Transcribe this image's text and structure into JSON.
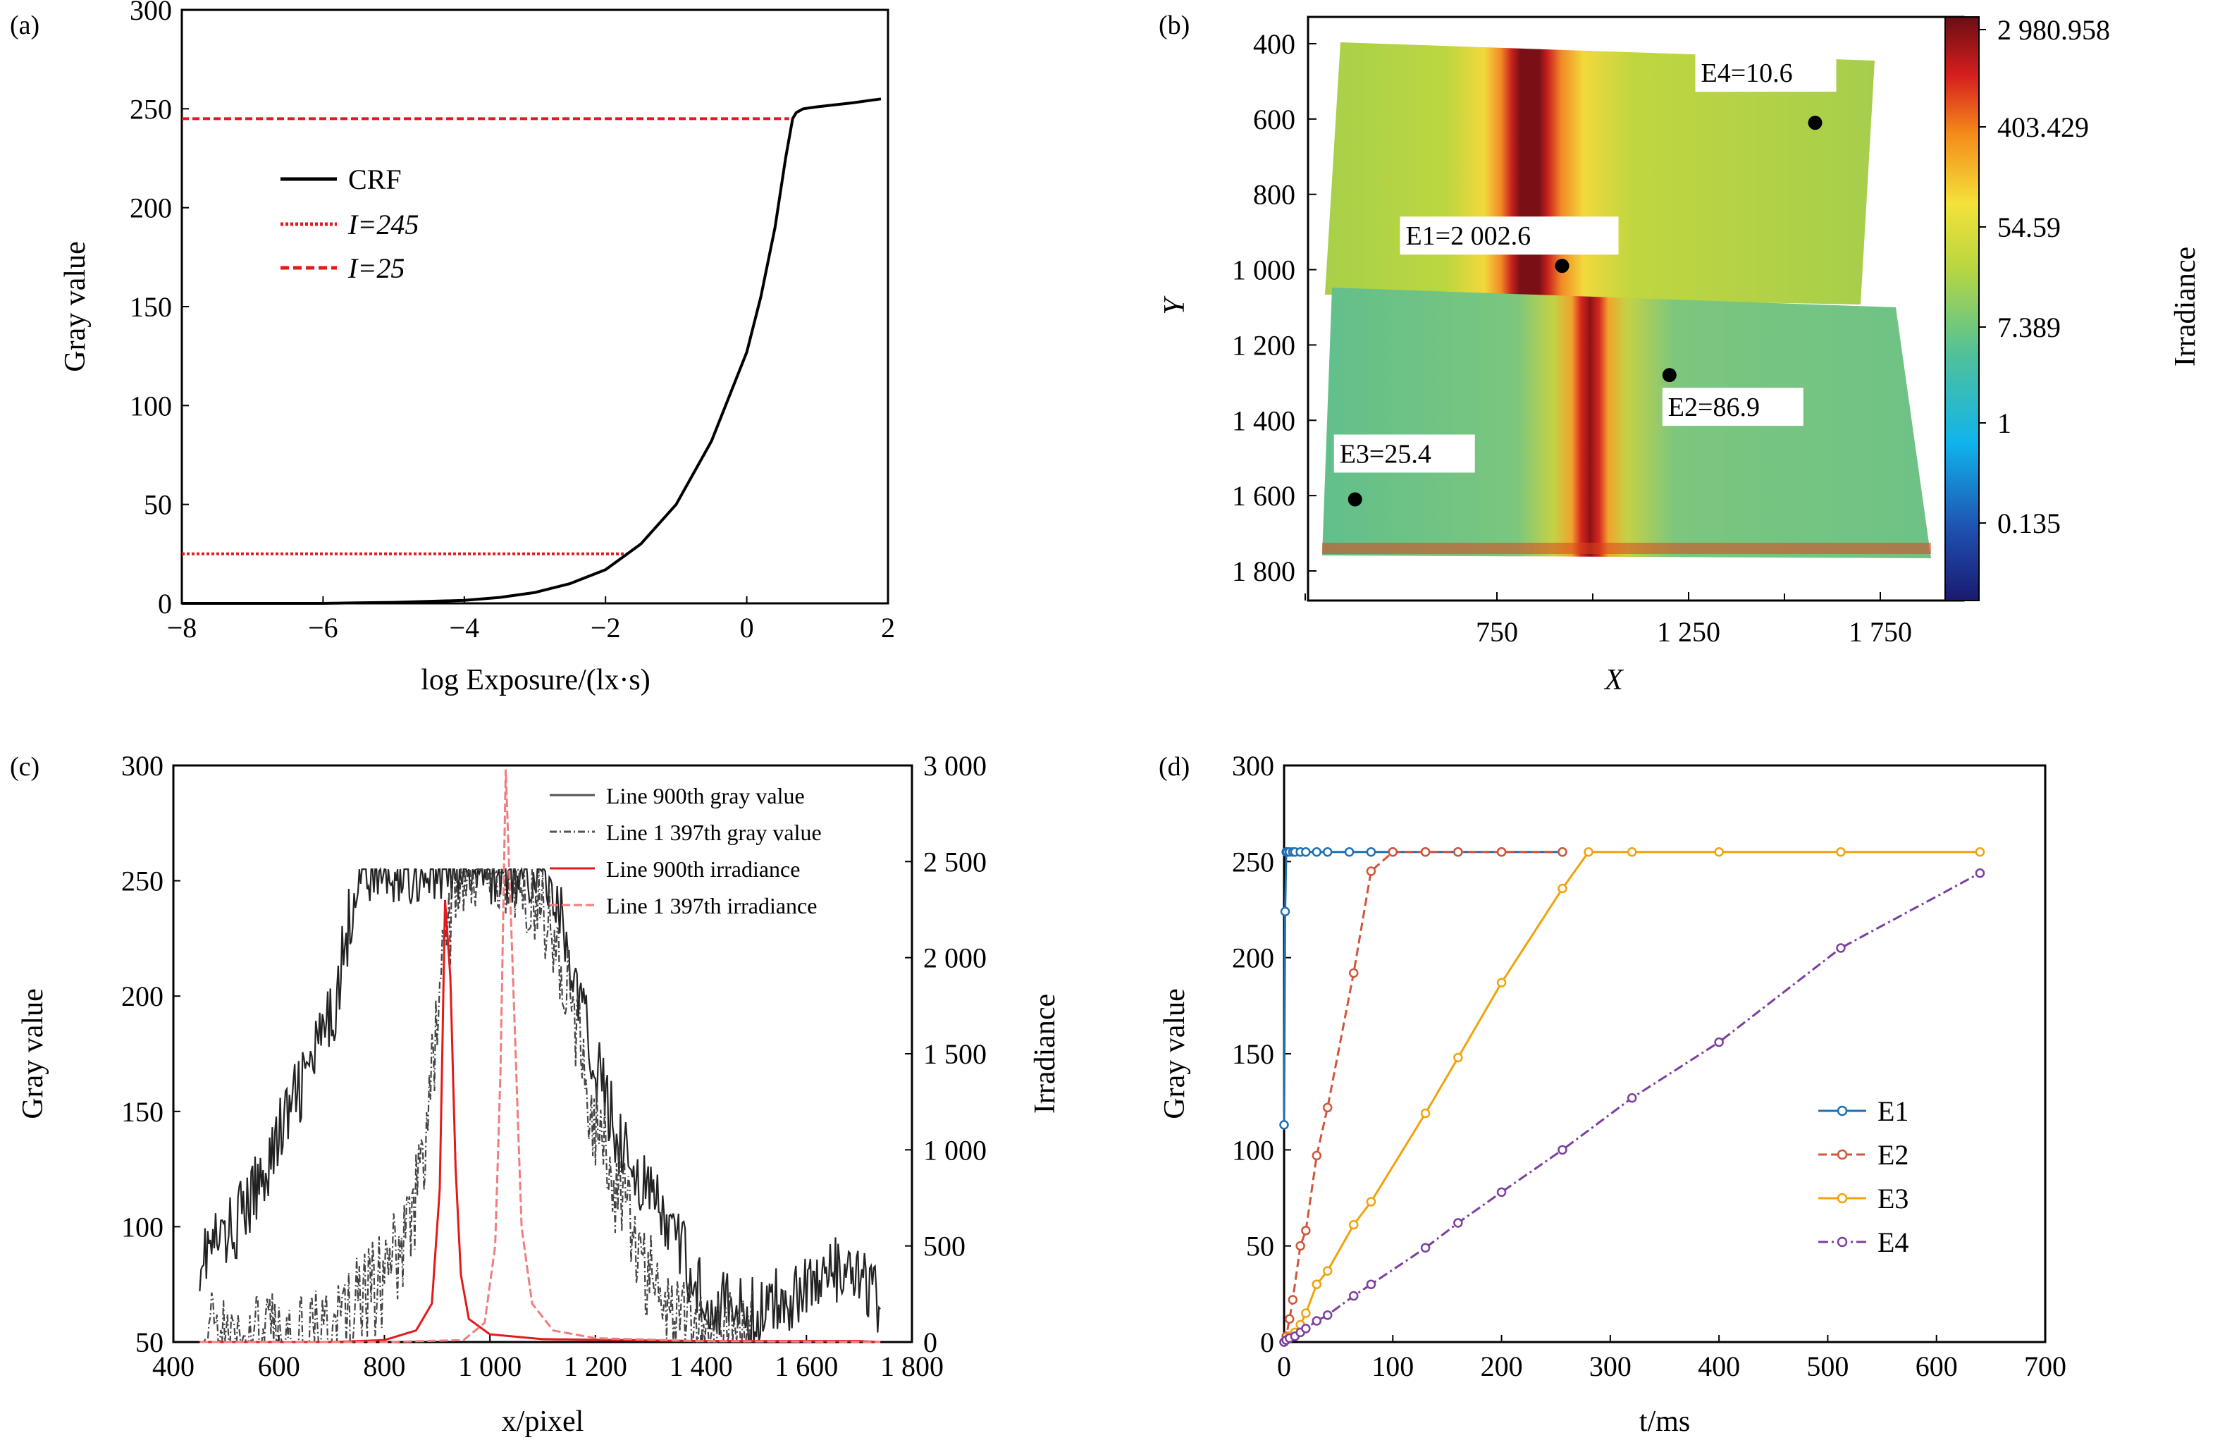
{
  "colors": {
    "crf": "#000000",
    "thresh": "#e31a1c",
    "e1": "#1f6fb4",
    "e2": "#d0553a",
    "e3": "#f0a30a",
    "e4": "#7b3f9e"
  },
  "panels": {
    "a": {
      "label": "(a)",
      "chart_data": {
        "type": "line",
        "xlabel": "log Exposure/(lx·s)",
        "ylabel": "Gray value",
        "xlim": [
          -8,
          2
        ],
        "ylim": [
          0,
          300
        ],
        "xticks": [
          "−8",
          "−6",
          "−4",
          "−2",
          "0",
          "2"
        ],
        "yticks": [
          "0",
          "50",
          "100",
          "150",
          "200",
          "250",
          "300"
        ],
        "legend": [
          "CRF",
          "I=245",
          "I=25"
        ],
        "series": [
          {
            "name": "CRF",
            "x": [
              -8,
              -6,
              -5,
              -4,
              -3.5,
              -3,
              -2.5,
              -2,
              -1.5,
              -1,
              -0.5,
              0,
              0.2,
              0.4,
              0.55,
              0.65,
              0.7,
              0.8,
              1.0,
              1.5,
              1.9
            ],
            "y": [
              0,
              0,
              0.5,
              1.5,
              3,
              5.5,
              10,
              17,
              30,
              50,
              82,
              127,
              155,
              190,
              225,
              245,
              248,
              250,
              251,
              253,
              255
            ]
          },
          {
            "name": "I=245",
            "x": [
              -8,
              0.6
            ],
            "y": [
              245,
              245
            ]
          },
          {
            "name": "I=25",
            "x": [
              -8,
              -1.7
            ],
            "y": [
              25,
              25
            ]
          }
        ]
      }
    },
    "b": {
      "label": "(b)",
      "chart_data": {
        "type": "heatmap",
        "xlabel": "X",
        "ylabel": "Y",
        "xticks": [
          "750",
          "1 250",
          "1 750"
        ],
        "yticks": [
          "400",
          "600",
          "800",
          "1 000",
          "1 200",
          "1 400",
          "1 600",
          "1 800"
        ],
        "colorbar_label": "Irradiance",
        "colorbar_ticks": [
          "2 980.958",
          "403.429",
          "54.59",
          "7.389",
          "1",
          "0.135"
        ],
        "points": [
          {
            "label": "E1=2 002.6",
            "x": 920,
            "y": 990
          },
          {
            "label": "E2=86.9",
            "x": 1200,
            "y": 1280
          },
          {
            "label": "E3=25.4",
            "x": 380,
            "y": 1610
          },
          {
            "label": "E4=10.6",
            "x": 1580,
            "y": 610
          }
        ]
      }
    },
    "c": {
      "label": "(c)",
      "chart_data": {
        "type": "line",
        "xlabel": "x/pixel",
        "ylabel": "Gray value",
        "y2label": "Irradiance",
        "xticks": [
          "400",
          "600",
          "800",
          "1 000",
          "1 200",
          "1 400",
          "1 600",
          "1 800"
        ],
        "yticks": [
          "50",
          "100",
          "150",
          "200",
          "250",
          "300"
        ],
        "y2ticks": [
          "0",
          "500",
          "1 000",
          "1 500",
          "2 000",
          "2 500",
          "3 000"
        ],
        "xlim": [
          400,
          1800
        ],
        "ylim": [
          50,
          300
        ],
        "y2lim": [
          0,
          3000
        ],
        "legend": [
          "Line 900th gray value",
          "Line 1 397th gray value",
          "Line 900th irradiance",
          "Line 1 397th irradiance"
        ],
        "series": [
          {
            "name": "Line 900th gray value",
            "x": [
              450,
              500,
              550,
              600,
              650,
              700,
              720,
              750,
              800,
              850,
              900,
              1000,
              1100,
              1130,
              1160,
              1200,
              1250,
              1300,
              1350,
              1400,
              1450,
              1500,
              1550,
              1600,
              1650,
              1700,
              1730,
              1740
            ],
            "y": [
              88,
              95,
              112,
              140,
              165,
              190,
              215,
              255,
              255,
              255,
              255,
              255,
              255,
              240,
              205,
              170,
              135,
              115,
              95,
              72,
              65,
              62,
              68,
              75,
              80,
              76,
              70,
              50
            ]
          },
          {
            "name": "Line 1 397th gray value",
            "x": [
              450,
              600,
              700,
              750,
              800,
              850,
              880,
              900,
              920,
              950,
              980,
              1000,
              1050,
              1100,
              1150,
              1200,
              1250,
              1300,
              1350,
              1400,
              1450,
              1500
            ],
            "y": [
              50,
              50,
              55,
              65,
              78,
              100,
              140,
              190,
              230,
              255,
              255,
              255,
              255,
              240,
              200,
              145,
              110,
              80,
              62,
              55,
              52,
              50
            ]
          },
          {
            "name": "Line 900th irradiance",
            "x": [
              450,
              700,
              800,
              860,
              890,
              905,
              915,
              925,
              935,
              945,
              960,
              1000,
              1100,
              1400,
              1700,
              1740
            ],
            "y": [
              0,
              0,
              10,
              60,
              200,
              800,
              2300,
              1900,
              900,
              350,
              120,
              40,
              15,
              5,
              5,
              0
            ]
          },
          {
            "name": "Line 1 397th irradiance",
            "x": [
              450,
              800,
              950,
              990,
              1010,
              1020,
              1030,
              1045,
              1060,
              1080,
              1120,
              1200,
              1400,
              1740
            ],
            "y": [
              0,
              0,
              10,
              100,
              500,
              1400,
              2980,
              1800,
              600,
              200,
              60,
              20,
              5,
              0
            ]
          }
        ]
      }
    },
    "d": {
      "label": "(d)",
      "chart_data": {
        "type": "line",
        "xlabel": "t/ms",
        "ylabel": "Gray value",
        "xticks": [
          "0",
          "100",
          "200",
          "300",
          "400",
          "500",
          "600",
          "700"
        ],
        "yticks": [
          "0",
          "50",
          "100",
          "150",
          "200",
          "250",
          "300"
        ],
        "xlim": [
          0,
          700
        ],
        "ylim": [
          0,
          300
        ],
        "legend": [
          "E1",
          "E2",
          "E3",
          "E4"
        ],
        "series": [
          {
            "name": "E1",
            "x": [
              0,
              1,
              2,
              3,
              5,
              8,
              10,
              15,
              20,
              30,
              40,
              60,
              80,
              100,
              130,
              160,
              200,
              256
            ],
            "y": [
              113,
              224,
              255,
              255,
              255,
              255,
              255,
              255,
              255,
              255,
              255,
              255,
              255,
              255,
              255,
              255,
              255,
              255
            ]
          },
          {
            "name": "E2",
            "x": [
              0,
              2,
              5,
              8,
              15,
              20,
              30,
              40,
              64,
              80,
              100,
              130,
              160,
              200,
              256
            ],
            "y": [
              0,
              3,
              12,
              22,
              50,
              58,
              97,
              122,
              192,
              245,
              255,
              255,
              255,
              255,
              255
            ]
          },
          {
            "name": "E3",
            "x": [
              0,
              2,
              5,
              10,
              15,
              20,
              30,
              40,
              64,
              80,
              130,
              160,
              200,
              256,
              280,
              320,
              400,
              512,
              640
            ],
            "y": [
              0,
              1,
              3,
              5,
              9,
              15,
              30,
              37,
              61,
              73,
              119,
              148,
              187,
              236,
              255,
              255,
              255,
              255,
              255
            ]
          },
          {
            "name": "E4",
            "x": [
              0,
              2,
              5,
              10,
              15,
              20,
              30,
              40,
              64,
              80,
              130,
              160,
              200,
              256,
              320,
              400,
              512,
              640
            ],
            "y": [
              0,
              1,
              2,
              3,
              5,
              7,
              11,
              14,
              24,
              30,
              49,
              62,
              78,
              100,
              127,
              156,
              205,
              244
            ]
          }
        ]
      }
    }
  }
}
